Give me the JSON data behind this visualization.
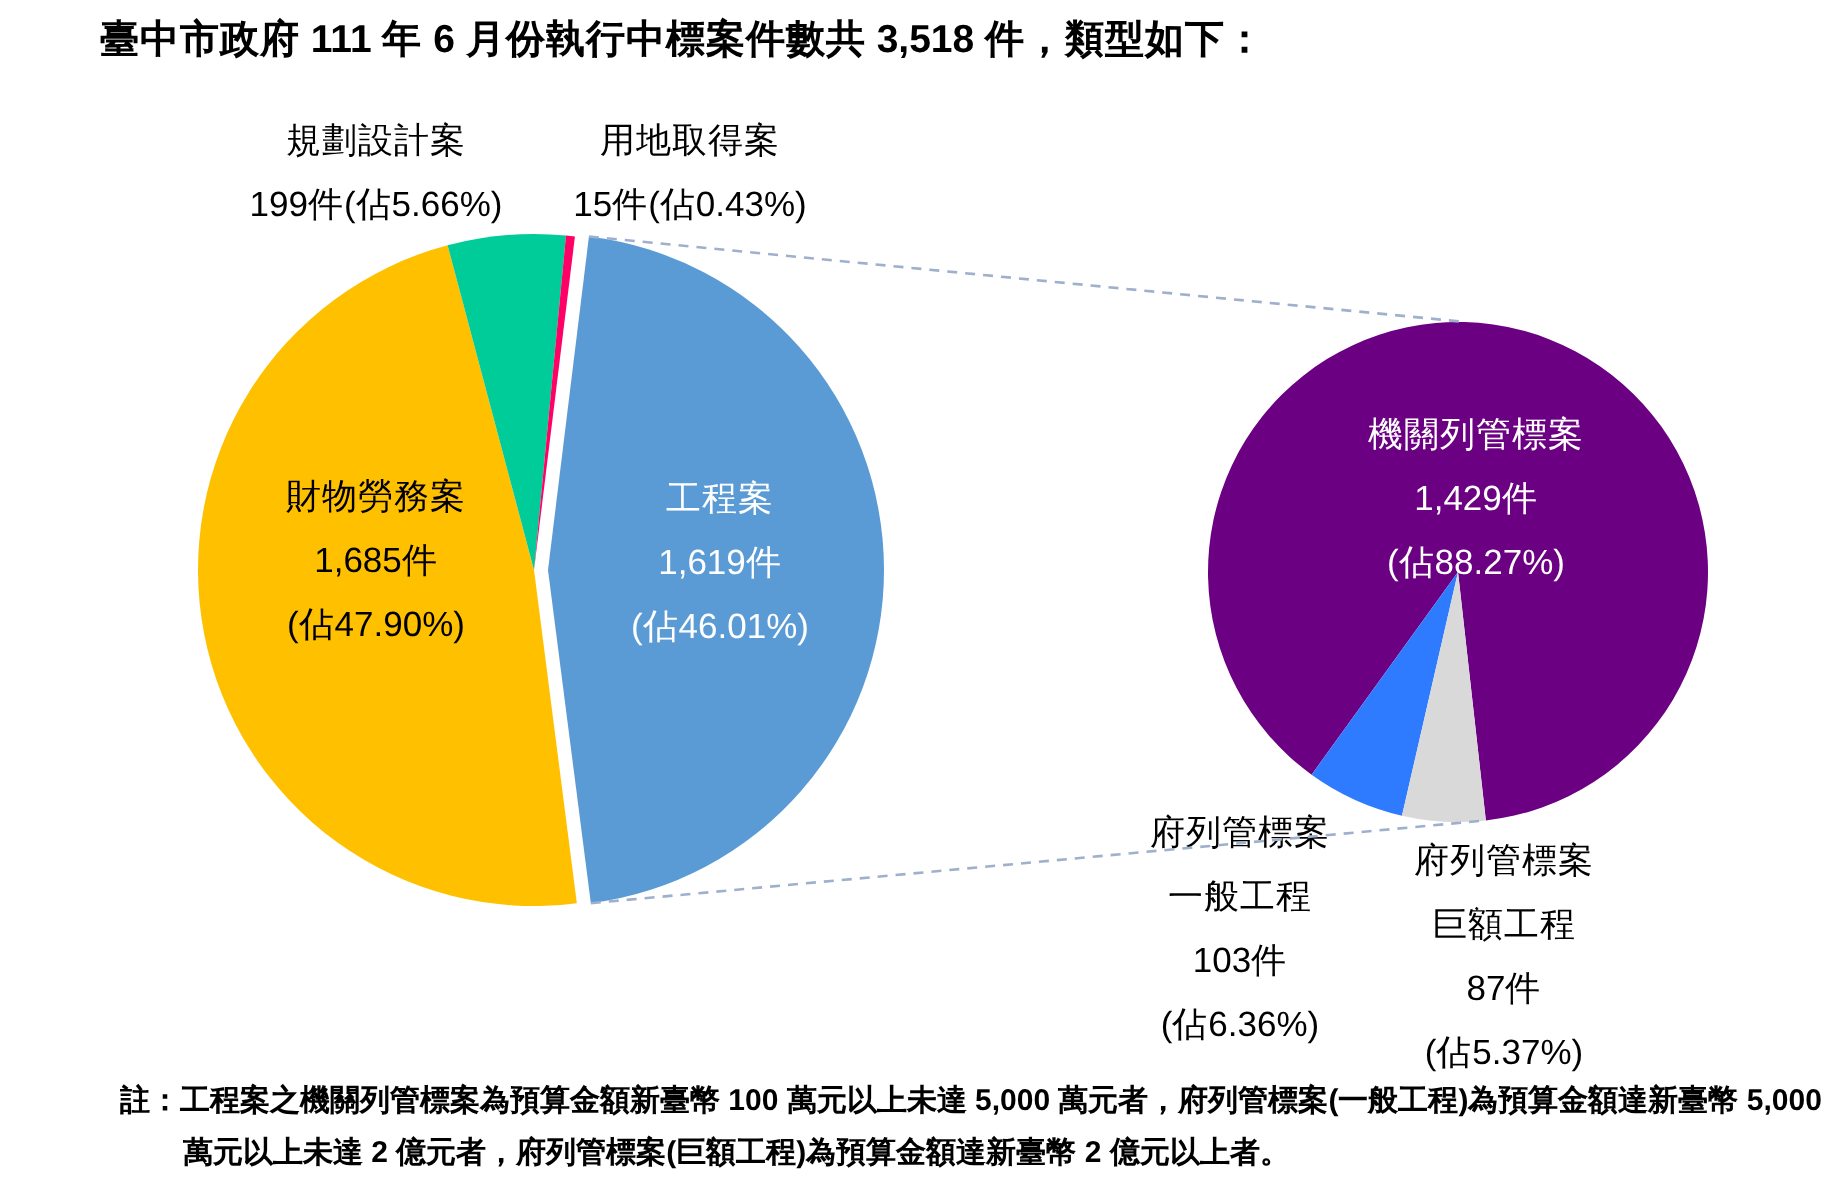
{
  "chart_data": [
    {
      "type": "pie",
      "title": "臺中市政府 111 年 6 月份執行中標案件數共 3,518 件，類型如下：",
      "categories": [
        "工程案",
        "財物勞務案",
        "規劃設計案",
        "用地取得案"
      ],
      "values": [
        1619,
        1685,
        199,
        15
      ],
      "colors": [
        "#5b9bd5",
        "#ffc000",
        "#00cc99",
        "#ff0066"
      ],
      "value_labels": [
        "1,619件\n(佔46.01%)",
        "1,685件\n(佔47.90%)",
        "199件(佔5.66%)",
        "15件(佔0.43%)"
      ]
    },
    {
      "type": "pie",
      "categories": [
        "機關列管標案",
        "府列管標案一般工程",
        "府列管標案巨額工程"
      ],
      "values": [
        1429,
        103,
        87
      ],
      "colors": [
        "#6c0082",
        "#2f7bff",
        "#d9d9d9"
      ],
      "value_labels": [
        "1,429件\n(佔88.27%)",
        "103件\n(佔6.36%)",
        "87件\n(佔5.37%)"
      ],
      "annotations": [
        "註：工程案之機關列管標案為預算金額新臺幣 100 萬元以上未達 5,000 萬元者，府列管標案(一般工程)為預算金額達新臺幣 5,000 萬元以上未達 2 億元者，府列管標案(巨額工程)為預算金額達新臺幣 2 億元以上者。"
      ]
    }
  ]
}
